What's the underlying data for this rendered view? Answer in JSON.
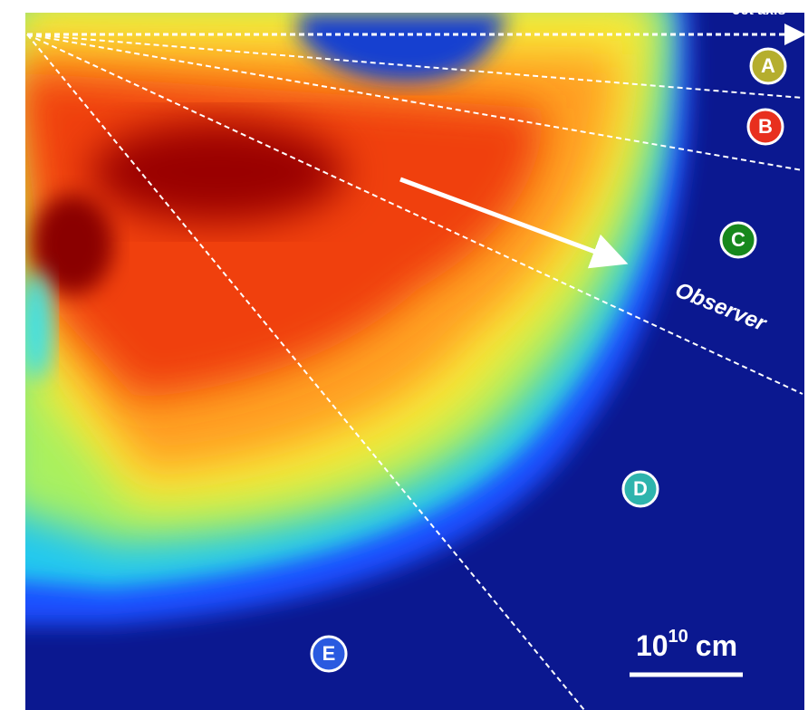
{
  "jet_axis": "Jet axis",
  "regions": [
    "A",
    "B",
    "C",
    "D",
    "E"
  ],
  "observer": "Observer",
  "scale_bar": {
    "base": "10",
    "exponent": "10",
    "unit": "cm"
  }
}
